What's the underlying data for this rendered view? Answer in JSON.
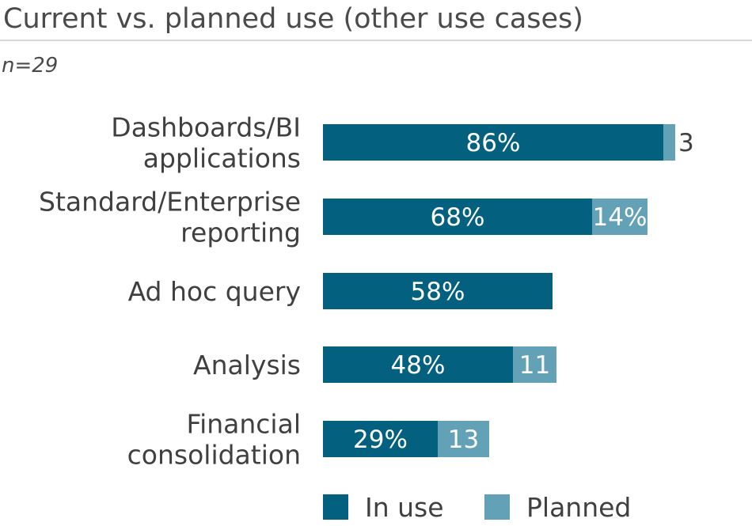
{
  "header": {
    "title": "Current vs. planned use (other use cases)",
    "sample": "n=29"
  },
  "colors": {
    "in_use": "#03607f",
    "planned": "#63a1b7",
    "text_on_bar": "#ffffff",
    "text_outside": "#404040"
  },
  "chart_data": {
    "type": "bar",
    "orientation": "horizontal",
    "stacked": true,
    "categories": [
      [
        "Dashboards/BI",
        "applications"
      ],
      [
        "Standard/Enterprise",
        "reporting"
      ],
      [
        "Ad hoc query"
      ],
      [
        "Analysis"
      ],
      [
        "Financial",
        "consolidation"
      ]
    ],
    "series": [
      {
        "name": "In use",
        "values": [
          86,
          68,
          58,
          48,
          29
        ],
        "labels": [
          "86%",
          "68%",
          "58%",
          "48%",
          "29%"
        ]
      },
      {
        "name": "Planned",
        "values": [
          3,
          14,
          0,
          11,
          13
        ],
        "labels": [
          "3",
          "14%",
          "",
          "11",
          "13"
        ]
      }
    ],
    "xlim": [
      0,
      100
    ],
    "legend_position": "bottom",
    "grid": false
  }
}
